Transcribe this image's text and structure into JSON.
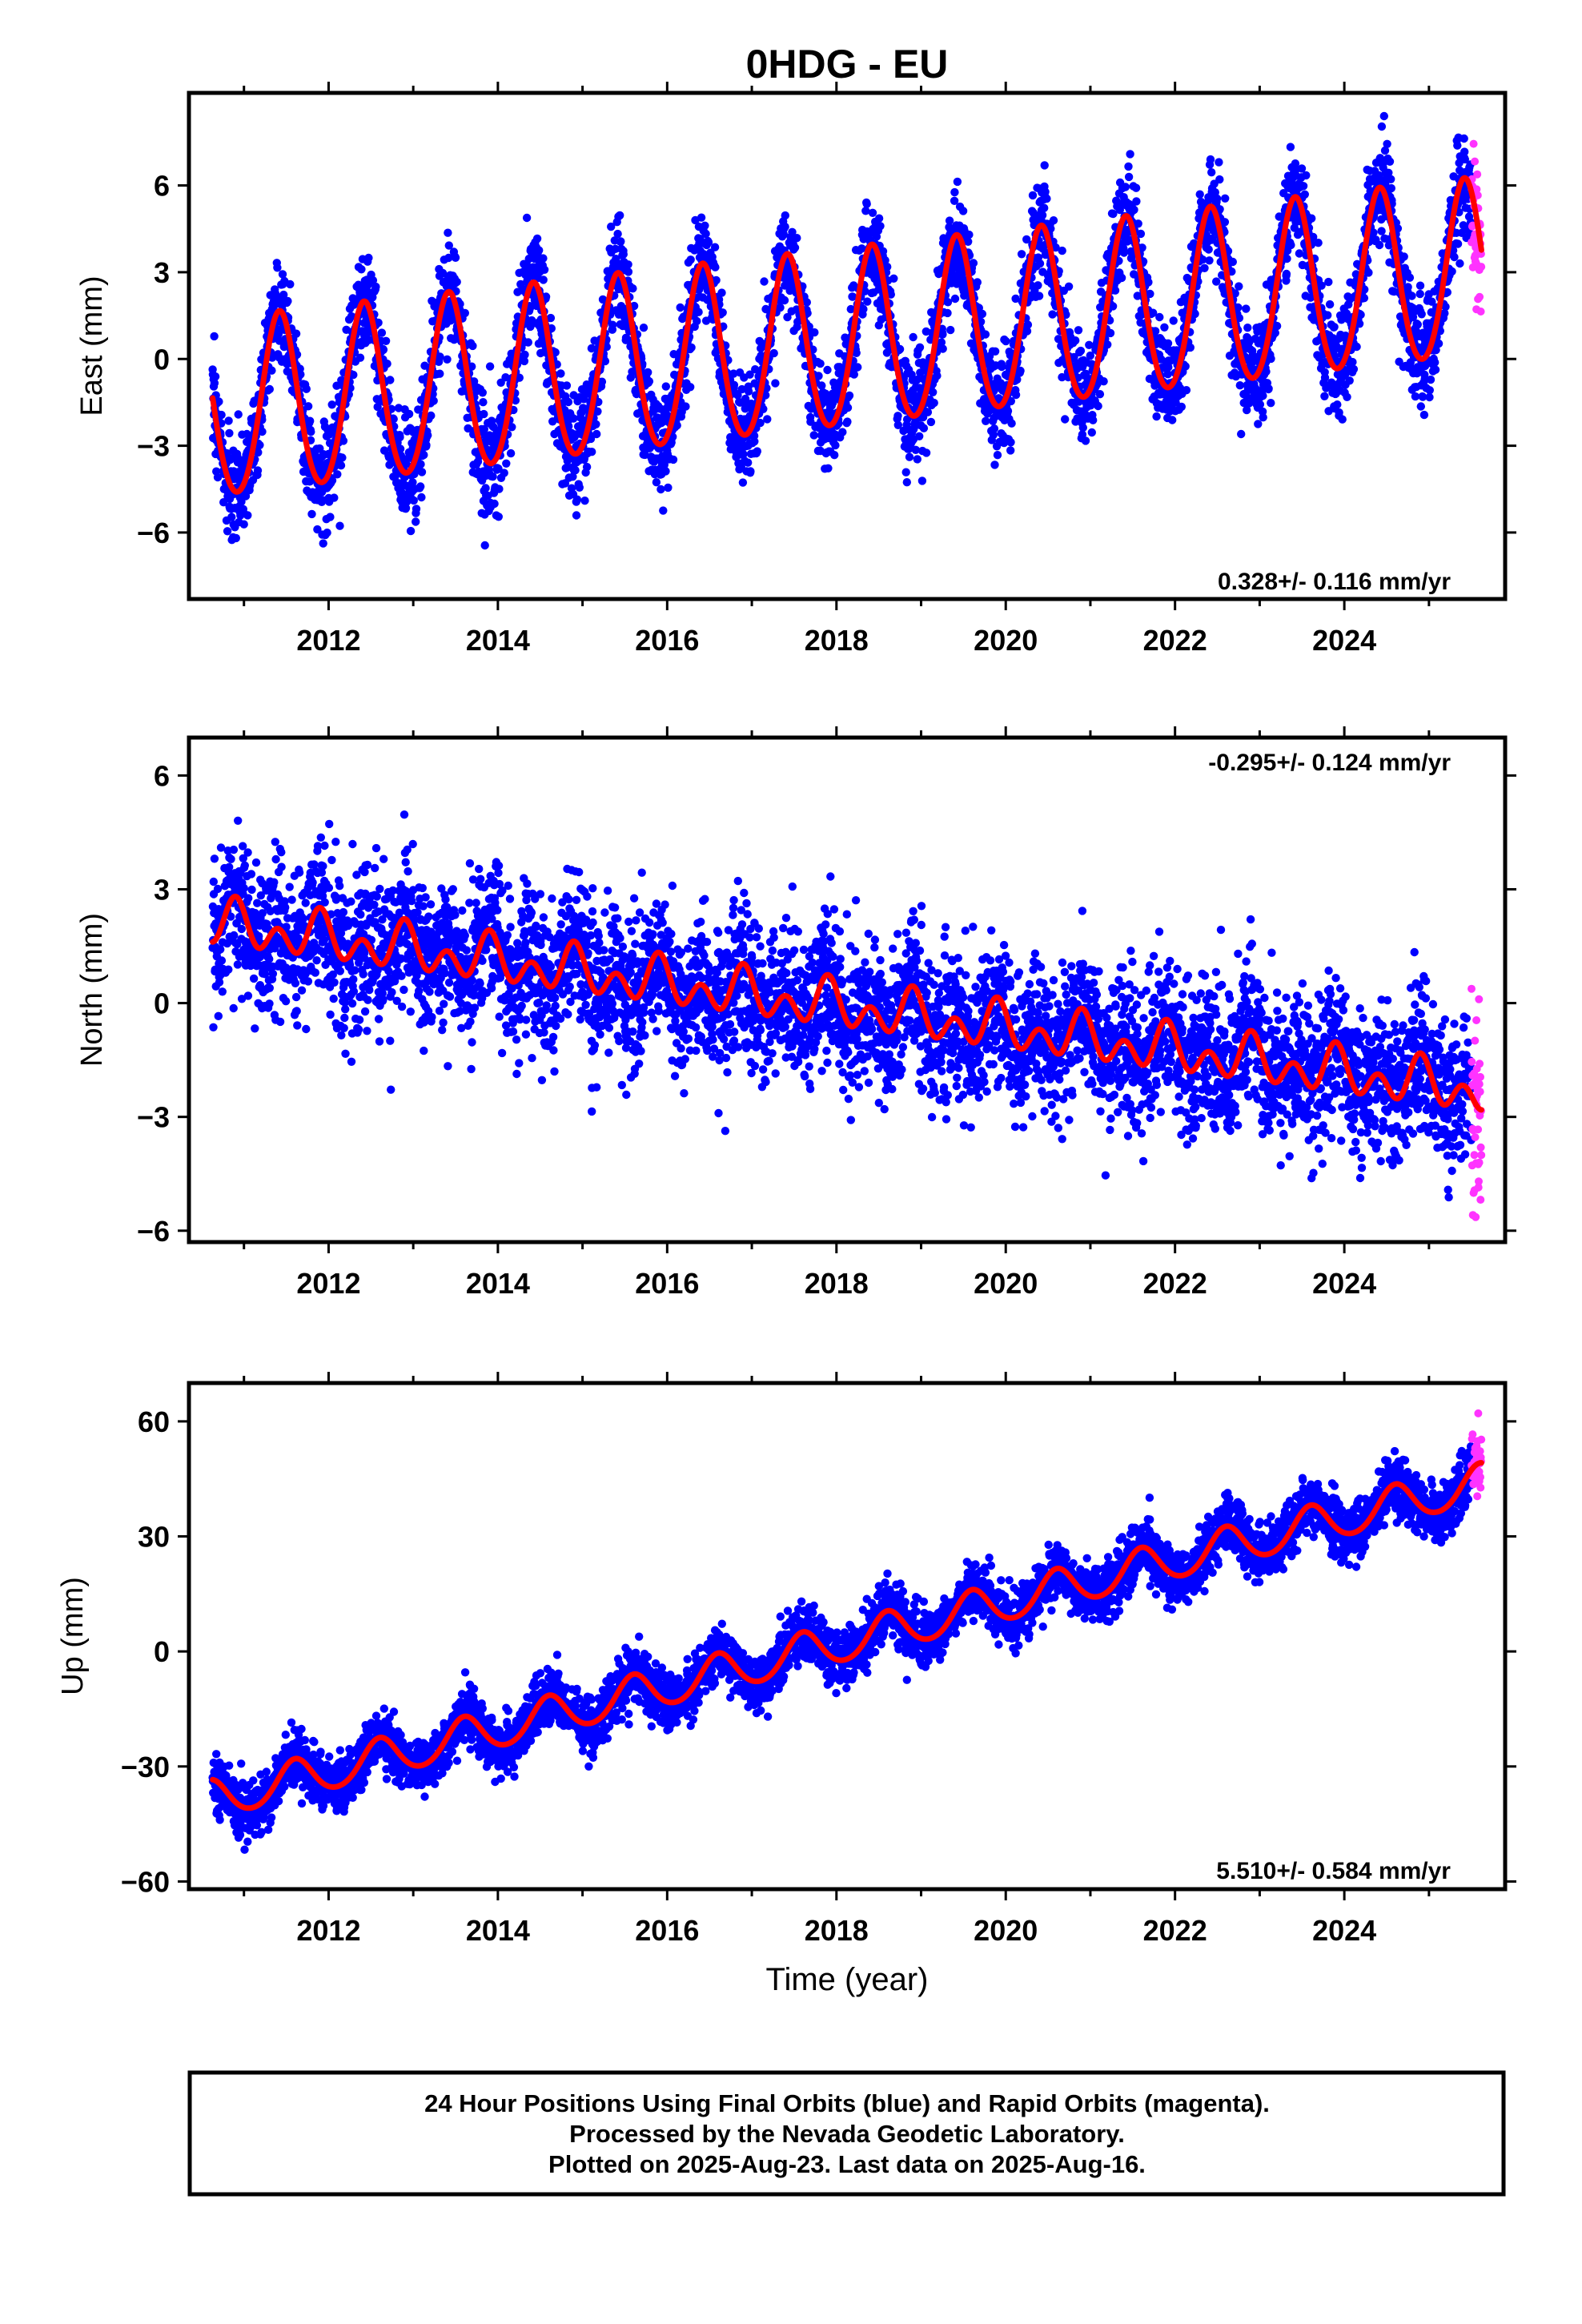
{
  "title": "0HDG - EU",
  "chart_data": [
    {
      "type": "scatter",
      "panel": "east",
      "ylabel": "East (mm)",
      "xlabel": "",
      "xlim": [
        2010.35,
        2025.9
      ],
      "ylim": [
        -8.3,
        9.2
      ],
      "yticks": [
        -6,
        -3,
        0,
        3,
        6
      ],
      "ytick_labels": [
        "−6",
        "−3",
        "0",
        "3",
        "6"
      ],
      "xticks": [
        2012,
        2014,
        2016,
        2018,
        2020,
        2022,
        2024
      ],
      "xtick_labels": [
        "2012",
        "2014",
        "2016",
        "2018",
        "2020",
        "2022",
        "2024"
      ],
      "rate_label": "0.328+/- 0.116 mm/yr",
      "rate_position": "bottom-right",
      "model": {
        "intercept": -1.9,
        "slope": 0.328,
        "annual_amp": 3.05,
        "annual_peak": 0.42,
        "amp_growth": 0.0,
        "semi_amp": 0.25
      },
      "scatter_sd": 0.9,
      "first_obs": 2010.63,
      "final_orbits_end": 2025.5,
      "last_obs": 2025.62,
      "series": [
        {
          "name": "Final Orbits",
          "color": "#0000ff",
          "kind": "points"
        },
        {
          "name": "Rapid Orbits",
          "color": "#ff33ff",
          "kind": "points"
        },
        {
          "name": "Model",
          "color": "#ff0000",
          "kind": "line"
        }
      ]
    },
    {
      "type": "scatter",
      "panel": "north",
      "ylabel": "North (mm)",
      "xlabel": "",
      "xlim": [
        2010.35,
        2025.9
      ],
      "ylim": [
        -6.3,
        7.0
      ],
      "yticks": [
        -6,
        -3,
        0,
        3,
        6
      ],
      "ytick_labels": [
        "−6",
        "−3",
        "0",
        "3",
        "6"
      ],
      "xticks": [
        2012,
        2014,
        2016,
        2018,
        2020,
        2022,
        2024
      ],
      "xtick_labels": [
        "2012",
        "2014",
        "2016",
        "2018",
        "2020",
        "2022",
        "2024"
      ],
      "rate_label": "-0.295+/- 0.124 mm/yr",
      "rate_position": "top-right",
      "model": {
        "intercept": 2.1,
        "slope": -0.295,
        "annual_amp": 0.35,
        "annual_peak": 0.9,
        "amp_growth": 0.0,
        "semi_amp": 0.45
      },
      "scatter_sd": 0.95,
      "first_obs": 2010.63,
      "final_orbits_end": 2025.5,
      "last_obs": 2025.62,
      "series": [
        {
          "name": "Final Orbits",
          "color": "#0000ff",
          "kind": "points"
        },
        {
          "name": "Rapid Orbits",
          "color": "#ff33ff",
          "kind": "points"
        },
        {
          "name": "Model",
          "color": "#ff0000",
          "kind": "line"
        }
      ]
    },
    {
      "type": "scatter",
      "panel": "up",
      "ylabel": "Up (mm)",
      "xlabel": "Time (year)",
      "xlim": [
        2010.35,
        2025.9
      ],
      "ylim": [
        -62,
        70
      ],
      "yticks": [
        -60,
        -30,
        0,
        30,
        60
      ],
      "ytick_labels": [
        "−60",
        "−30",
        "0",
        "30",
        "60"
      ],
      "xticks": [
        2012,
        2014,
        2016,
        2018,
        2020,
        2022,
        2024
      ],
      "xtick_labels": [
        "2012",
        "2014",
        "2016",
        "2018",
        "2020",
        "2022",
        "2024"
      ],
      "rate_label": "5.510+/- 0.584 mm/yr",
      "rate_position": "bottom-right",
      "model": {
        "intercept": -39,
        "slope": 5.51,
        "annual_amp": 5.0,
        "annual_peak": 0.6,
        "amp_growth": 0.0,
        "semi_amp": 0.5
      },
      "scatter_sd": 3.6,
      "first_obs": 2010.63,
      "final_orbits_end": 2025.5,
      "last_obs": 2025.62,
      "series": [
        {
          "name": "Final Orbits",
          "color": "#0000ff",
          "kind": "points"
        },
        {
          "name": "Rapid Orbits",
          "color": "#ff33ff",
          "kind": "points"
        },
        {
          "name": "Model",
          "color": "#ff0000",
          "kind": "line"
        }
      ]
    }
  ],
  "footer": {
    "line1": "24 Hour Positions Using Final Orbits (blue) and Rapid Orbits (magenta).",
    "line2": "Processed by the Nevada Geodetic Laboratory.",
    "line3": "Plotted on 2025-Aug-23. Last data on 2025-Aug-16."
  }
}
